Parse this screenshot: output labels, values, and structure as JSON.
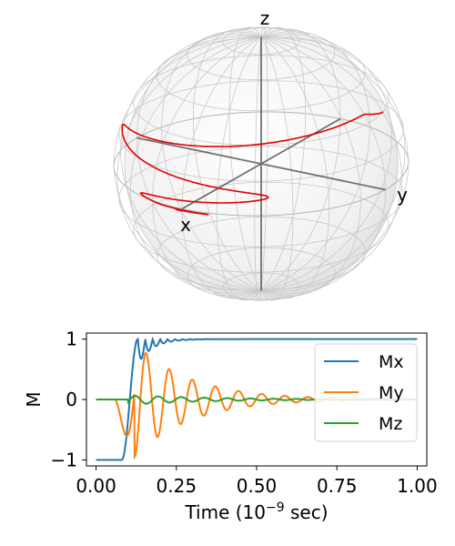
{
  "chart_data": [
    {
      "type": "bloch-sphere",
      "axis_labels": {
        "x": "x",
        "y": "y",
        "z": "z"
      },
      "trajectory_color": "#e00000"
    },
    {
      "type": "line",
      "xlabel_main": "Time (10",
      "xlabel_sup": "−9",
      "xlabel_tail": " sec)",
      "ylabel": "M",
      "xlim": [
        -0.03,
        1.03
      ],
      "ylim": [
        -1.1,
        1.1
      ],
      "xticks": [
        0.0,
        0.25,
        0.5,
        0.75,
        1.0
      ],
      "xtick_labels": [
        "0.00",
        "0.25",
        "0.50",
        "0.75",
        "1.00"
      ],
      "yticks": [
        -1,
        0,
        1
      ],
      "ytick_labels": [
        "−1",
        "0",
        "1"
      ],
      "legend_position": "upper-right",
      "series": [
        {
          "name": "Mx",
          "color": "#1f77b4"
        },
        {
          "name": "My",
          "color": "#ff7f0e"
        },
        {
          "name": "Mz",
          "color": "#2ca02c"
        }
      ]
    }
  ]
}
